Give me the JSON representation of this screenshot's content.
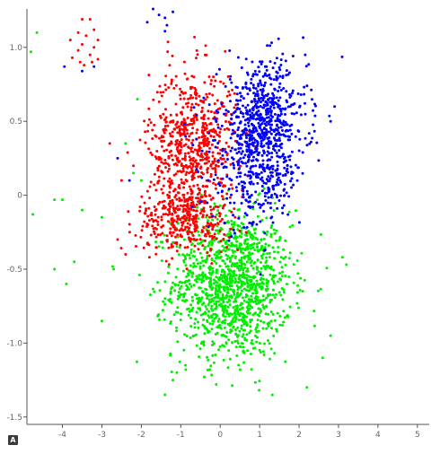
{
  "badge_label": "A",
  "chart_data": {
    "type": "scatter",
    "xlim": [
      -4.9,
      5.3
    ],
    "ylim": [
      -1.55,
      1.26
    ],
    "x_ticks": [
      -4,
      -3,
      -2,
      -1,
      0,
      1,
      2,
      3,
      4,
      5
    ],
    "y_ticks": [
      1.0,
      0.5,
      0,
      -0.5,
      -1.0,
      -1.5
    ],
    "x_tick_labels": [
      "-4",
      "-3",
      "-2",
      "-1",
      "0",
      "1",
      "2",
      "3",
      "4",
      "5"
    ],
    "y_tick_labels": [
      "1.0",
      "0.5",
      "0",
      "-0.5",
      "-1.0",
      "-1.5"
    ],
    "grid": false,
    "legend": "none",
    "series": [
      {
        "color": "#ff0000",
        "clusters": [
          {
            "cx": -0.7,
            "cy": 0.35,
            "sx": 0.55,
            "sy": 0.25,
            "n": 650
          },
          {
            "cx": -0.9,
            "cy": -0.15,
            "sx": 0.6,
            "sy": 0.12,
            "n": 350
          }
        ],
        "points": [
          [
            -3.5,
            1.19
          ],
          [
            -3.3,
            1.19
          ],
          [
            -3.2,
            1.12
          ],
          [
            -3.6,
            1.1
          ],
          [
            -3.4,
            1.08
          ],
          [
            -3.1,
            1.05
          ],
          [
            -3.8,
            1.05
          ],
          [
            -3.5,
            1.02
          ],
          [
            -3.2,
            1.0
          ],
          [
            -3.6,
            0.98
          ],
          [
            -3.3,
            0.95
          ],
          [
            -3.75,
            0.93
          ],
          [
            -3.1,
            0.92
          ],
          [
            -3.55,
            0.9
          ],
          [
            -3.45,
            0.88
          ],
          [
            -3.25,
            0.9
          ],
          [
            -2.2,
            0.2
          ],
          [
            -2.5,
            0.1
          ],
          [
            -2.8,
            0.35
          ],
          [
            -2.4,
            -0.4
          ],
          [
            -2.6,
            -0.3
          ]
        ]
      },
      {
        "color": "#0000ff",
        "clusters": [
          {
            "cx": 1.1,
            "cy": 0.5,
            "sx": 0.55,
            "sy": 0.2,
            "n": 600
          },
          {
            "cx": 0.9,
            "cy": 0.15,
            "sx": 0.6,
            "sy": 0.2,
            "n": 300
          }
        ],
        "points": [
          [
            -1.7,
            1.26
          ],
          [
            -1.55,
            1.22
          ],
          [
            -1.2,
            1.24
          ],
          [
            -1.85,
            1.17
          ],
          [
            -1.4,
            1.2
          ],
          [
            -1.35,
            1.15
          ],
          [
            -1.4,
            1.11
          ],
          [
            -3.95,
            0.87
          ],
          [
            -3.5,
            0.84
          ],
          [
            -3.2,
            0.87
          ],
          [
            -2.6,
            0.25
          ],
          [
            -2.3,
            0.1
          ],
          [
            2.8,
            0.5
          ],
          [
            2.9,
            0.6
          ]
        ]
      },
      {
        "color": "#00ee00",
        "clusters": [
          {
            "cx": 0.3,
            "cy": -0.6,
            "sx": 0.75,
            "sy": 0.25,
            "n": 1300
          }
        ],
        "points": [
          [
            -4.8,
            0.97
          ],
          [
            -4.65,
            1.1
          ],
          [
            -4.75,
            -0.13
          ],
          [
            -4.2,
            -0.03
          ],
          [
            -4.0,
            -0.03
          ],
          [
            -3.5,
            -0.1
          ],
          [
            -3.0,
            -0.15
          ],
          [
            -4.2,
            -0.5
          ],
          [
            -3.9,
            -0.6
          ],
          [
            -3.7,
            -0.45
          ],
          [
            -3.0,
            -0.85
          ],
          [
            -2.7,
            -0.5
          ],
          [
            -2.0,
            0.1
          ],
          [
            -2.2,
            0.15
          ],
          [
            -2.4,
            0.35
          ],
          [
            -2.1,
            0.65
          ],
          [
            -1.2,
            -1.25
          ],
          [
            -0.1,
            -1.28
          ],
          [
            -1.1,
            -1.2
          ],
          [
            3.1,
            -0.42
          ],
          [
            3.2,
            -0.47
          ],
          [
            2.6,
            -1.1
          ],
          [
            2.8,
            -0.95
          ],
          [
            2.2,
            -1.3
          ],
          [
            -1.4,
            -1.35
          ]
        ]
      }
    ]
  }
}
